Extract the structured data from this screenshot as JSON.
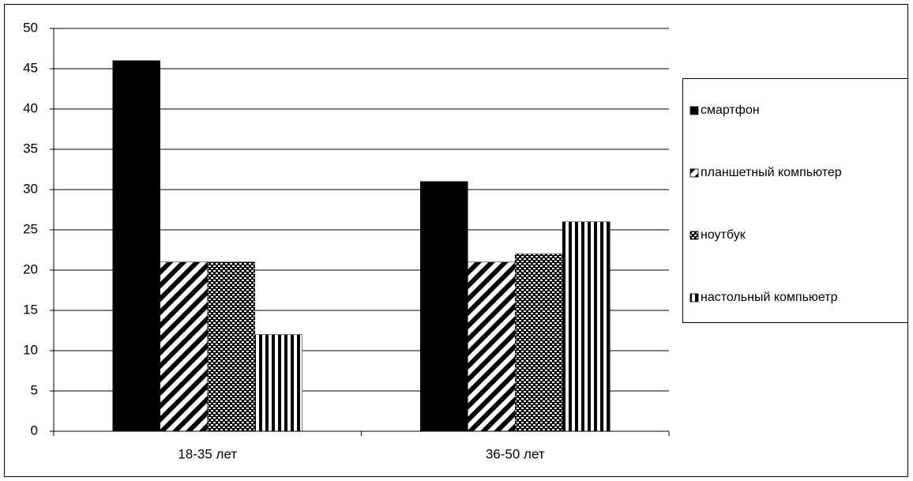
{
  "chart_data": {
    "type": "bar",
    "categories": [
      "18-35 лет",
      "36-50 лет"
    ],
    "series": [
      {
        "name": "смартфон",
        "color": "#000000",
        "pattern": "solid",
        "values": [
          46,
          31
        ]
      },
      {
        "name": "планшетный компьютер",
        "color": "#000000",
        "pattern": "diagonal",
        "values": [
          21,
          21
        ]
      },
      {
        "name": "ноутбук",
        "color": "#000000",
        "pattern": "checker",
        "values": [
          21,
          22
        ]
      },
      {
        "name": "настольный компьюетр",
        "color": "#000000",
        "pattern": "vertical",
        "values": [
          12,
          26
        ]
      }
    ],
    "ylim": [
      0,
      50
    ],
    "yticks": [
      0,
      5,
      10,
      15,
      20,
      25,
      30,
      35,
      40,
      45,
      50
    ],
    "grid": true,
    "legend": "right"
  }
}
